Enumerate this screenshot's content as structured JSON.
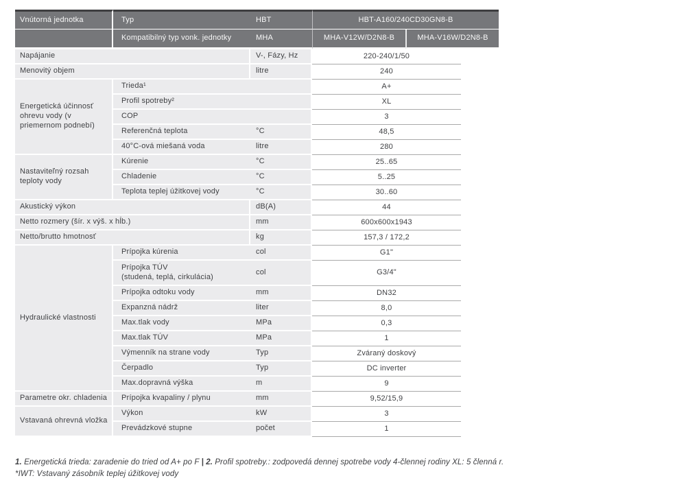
{
  "colors": {
    "page-bg": "#ffffff",
    "header-bg": "#76777a",
    "header-top": "#3e3e40",
    "header-text": "#f8f8f8",
    "cell-bg": "#ebebed",
    "body-text": "#3f4043",
    "value-line": "#a9a9a9"
  },
  "table": {
    "header": {
      "row1": {
        "col1": "Vnútorná jednotka",
        "col2": "Typ",
        "col3": "HBT",
        "model": "HBT-A160/240CD30GN8-B"
      },
      "row2": {
        "col2": "Kompatibilný typ vonk. jednotky",
        "col3": "MHA",
        "model1": "MHA-V12W/D2N8-B",
        "model2": "MHA-V16W/D2N8-B"
      }
    },
    "groups": [
      {
        "label": "Napájanie",
        "rows": [
          {
            "unit": "V-, Fázy, Hz",
            "value": "220-240/1/50"
          }
        ]
      },
      {
        "label": "Menovitý objem",
        "rows": [
          {
            "unit": "litre",
            "value": "240"
          }
        ]
      },
      {
        "label": "Energetická účinnosť ohrevu vody (v priemernom podnebí)",
        "rows": [
          {
            "sub": "Trieda¹",
            "unit": "",
            "value": "A+"
          },
          {
            "sub": "Profil spotreby²",
            "unit": "",
            "value": "XL"
          },
          {
            "sub": "COP",
            "unit": "",
            "value": "3"
          },
          {
            "sub": "Referenčná teplota",
            "unit": "°C",
            "value": "48,5"
          },
          {
            "sub": "40°C-ová miešaná voda",
            "unit": "litre",
            "value": "280"
          }
        ]
      },
      {
        "label": "Nastaviteľný rozsah teploty vody",
        "rows": [
          {
            "sub": "Kúrenie",
            "unit": "°C",
            "value": "25..65"
          },
          {
            "sub": "Chladenie",
            "unit": "°C",
            "value": "5..25"
          },
          {
            "sub": "Teplota teplej úžitkovej vody",
            "unit": "°C",
            "value": "30..60"
          }
        ]
      },
      {
        "label": "Akustický výkon",
        "rows": [
          {
            "unit": "dB(A)",
            "value": "44"
          }
        ]
      },
      {
        "label": "Netto rozmery (šír. x výš. x hĺb.)",
        "rows": [
          {
            "unit": "mm",
            "value": "600x600x1943"
          }
        ]
      },
      {
        "label": "Netto/brutto hmotnosť",
        "rows": [
          {
            "unit": "kg",
            "value": "157,3 / 172,2"
          }
        ]
      },
      {
        "label": "Hydraulické vlastnosti",
        "rows": [
          {
            "sub": "Prípojka kúrenia",
            "unit": "col",
            "value": "G1\""
          },
          {
            "sub": "Prípojka TÚV\n(studená, teplá, cirkulácia)",
            "unit": "col",
            "value": "G3/4\"",
            "tall": true
          },
          {
            "sub": "Prípojka odtoku vody",
            "unit": "mm",
            "value": "DN32"
          },
          {
            "sub": "Expanzná nádrž",
            "unit": "liter",
            "value": "8,0"
          },
          {
            "sub": "Max.tlak vody",
            "unit": "MPa",
            "value": "0,3"
          },
          {
            "sub": "Max.tlak TÚV",
            "unit": "MPa",
            "value": "1"
          },
          {
            "sub": "Výmenník na strane vody",
            "unit": "Typ",
            "value": "Zváraný doskový"
          },
          {
            "sub": "Čerpadlo",
            "unit": "Typ",
            "value": "DC inverter"
          },
          {
            "sub": "Max.dopravná výška",
            "unit": "m",
            "value": "9"
          }
        ]
      },
      {
        "label": "Parametre okr. chladenia",
        "rows": [
          {
            "sub": "Prípojka kvapaliny / plynu",
            "unit": "mm",
            "value": "9,52/15,9"
          }
        ]
      },
      {
        "label": "Vstavaná ohrevná vložka",
        "rows": [
          {
            "sub": "Výkon",
            "unit": "kW",
            "value": "3"
          },
          {
            "sub": "Prevádzkové stupne",
            "unit": "počet",
            "value": "1"
          }
        ]
      }
    ]
  },
  "footnotes": {
    "note1_bold1": "1.",
    "note1_text1": " Energetická trieda: zaradenie do tried od A+ po F ",
    "note1_bold2": "| 2.",
    "note1_text2": " Profil spotreby.: zodpovedá dennej spotrebe vody 4-člennej rodiny  XL: 5 členná r.",
    "note2": "*IWT: Vstavaný zásobník teplej úžitkovej vody"
  }
}
